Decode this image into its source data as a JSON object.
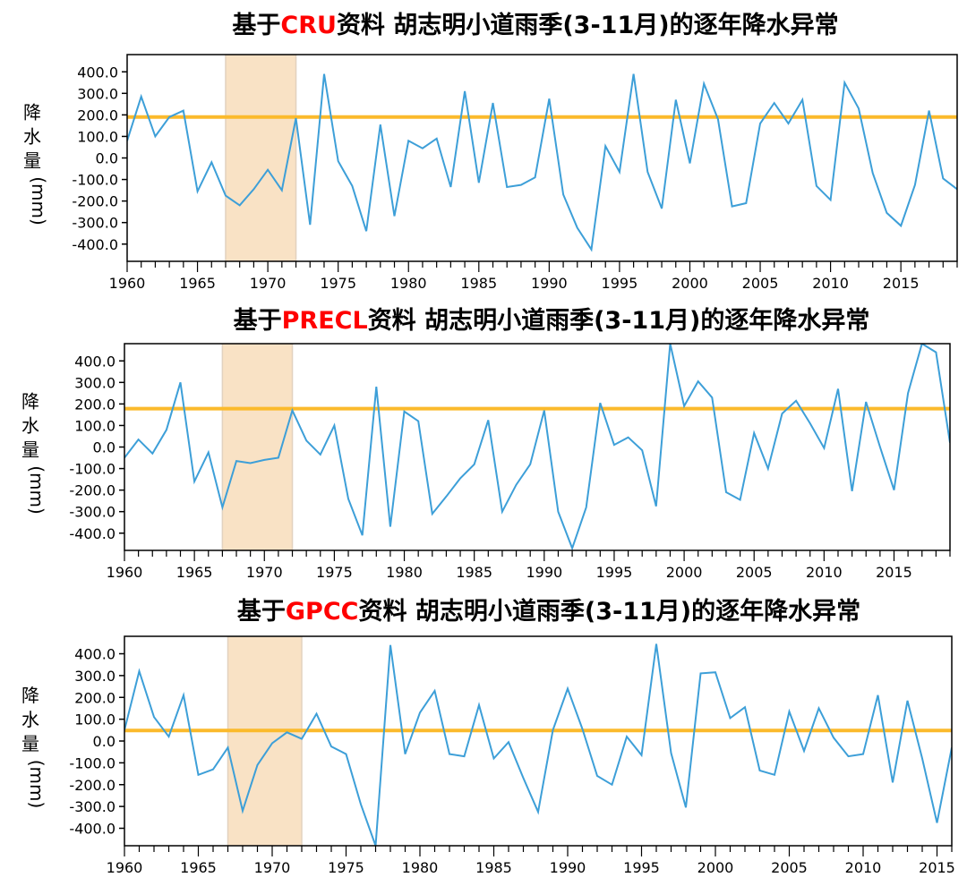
{
  "chart_data": [
    {
      "type": "line",
      "title_prefix": "基于",
      "title_highlight": "CRU",
      "title_suffix": "资料 胡志明小道雨季(3-11月)的逐年降水异常",
      "ylabel_chars": [
        "降",
        "水",
        "量"
      ],
      "ylabel_unit": "(mm)",
      "xlim": [
        1960,
        2019
      ],
      "ylim": [
        -480,
        480
      ],
      "yticks": [
        400,
        300,
        200,
        100,
        0,
        -100,
        -200,
        -300,
        -400
      ],
      "ytick_labels": [
        "400.0",
        "300.0",
        "200.0",
        "100.0",
        "0.0",
        "-100.0",
        "-200.0",
        "-300.0",
        "-400.0"
      ],
      "xticks": [
        1960,
        1965,
        1970,
        1975,
        1980,
        1985,
        1990,
        1995,
        2000,
        2005,
        2010,
        2015
      ],
      "xtick_labels": [
        "1960",
        "1965",
        "1970",
        "1975",
        "1980",
        "1985",
        "1990",
        "1995",
        "2000",
        "2005",
        "2010",
        "2015"
      ],
      "shaded_period": [
        1967,
        1972
      ],
      "reference_line": 190,
      "x": [
        1960,
        1961,
        1962,
        1963,
        1964,
        1965,
        1966,
        1967,
        1968,
        1969,
        1970,
        1971,
        1972,
        1973,
        1974,
        1975,
        1976,
        1977,
        1978,
        1979,
        1980,
        1981,
        1982,
        1983,
        1984,
        1985,
        1986,
        1987,
        1988,
        1989,
        1990,
        1991,
        1992,
        1993,
        1994,
        1995,
        1996,
        1997,
        1998,
        1999,
        2000,
        2001,
        2002,
        2003,
        2004,
        2005,
        2006,
        2007,
        2008,
        2009,
        2010,
        2011,
        2012,
        2013,
        2014,
        2015,
        2016,
        2017,
        2018,
        2019
      ],
      "values": [
        80,
        285,
        100,
        190,
        220,
        -155,
        -20,
        -175,
        -220,
        -145,
        -55,
        -150,
        185,
        -310,
        390,
        -15,
        -130,
        -340,
        155,
        -270,
        80,
        45,
        90,
        -135,
        310,
        -115,
        255,
        -135,
        -125,
        -90,
        275,
        -170,
        -325,
        -425,
        55,
        -65,
        390,
        -65,
        -235,
        270,
        -25,
        345,
        180,
        -225,
        -210,
        160,
        255,
        160,
        270,
        -130,
        -195,
        350,
        230,
        -70,
        -255,
        -315,
        -125,
        220,
        -95,
        -145
      ],
      "colors": {
        "line": "#3d9fd8",
        "reference": "#fbba2c",
        "shade": "#f9e2c5",
        "title_highlight": "#ff0000"
      }
    },
    {
      "type": "line",
      "title_prefix": "基于",
      "title_highlight": "PRECL",
      "title_suffix": "资料 胡志明小道雨季(3-11月)的逐年降水异常",
      "ylabel_chars": [
        "降",
        "水",
        "量"
      ],
      "ylabel_unit": "(mm)",
      "xlim": [
        1960,
        2019
      ],
      "ylim": [
        -480,
        480
      ],
      "yticks": [
        400,
        300,
        200,
        100,
        0,
        -100,
        -200,
        -300,
        -400
      ],
      "ytick_labels": [
        "400.0",
        "300.0",
        "200.0",
        "100.0",
        "0.0",
        "-100.0",
        "-200.0",
        "-300.0",
        "-400.0"
      ],
      "xticks": [
        1960,
        1965,
        1970,
        1975,
        1980,
        1985,
        1990,
        1995,
        2000,
        2005,
        2010,
        2015
      ],
      "xtick_labels": [
        "1960",
        "1965",
        "1970",
        "1975",
        "1980",
        "1985",
        "1990",
        "1995",
        "2000",
        "2005",
        "2010",
        "2015"
      ],
      "shaded_period": [
        1967,
        1972
      ],
      "reference_line": 178,
      "x": [
        1960,
        1961,
        1962,
        1963,
        1964,
        1965,
        1966,
        1967,
        1968,
        1969,
        1970,
        1971,
        1972,
        1973,
        1974,
        1975,
        1976,
        1977,
        1978,
        1979,
        1980,
        1981,
        1982,
        1983,
        1984,
        1985,
        1986,
        1987,
        1988,
        1989,
        1990,
        1991,
        1992,
        1993,
        1994,
        1995,
        1996,
        1997,
        1998,
        1999,
        2000,
        2001,
        2002,
        2003,
        2004,
        2005,
        2006,
        2007,
        2008,
        2009,
        2010,
        2011,
        2012,
        2013,
        2014,
        2015,
        2016,
        2017,
        2018,
        2019
      ],
      "values": [
        -50,
        35,
        -30,
        80,
        300,
        -160,
        -25,
        -280,
        -65,
        -75,
        -60,
        -50,
        170,
        30,
        -35,
        100,
        -240,
        -410,
        280,
        -370,
        165,
        120,
        -310,
        -230,
        -145,
        -80,
        125,
        -300,
        -175,
        -80,
        170,
        -300,
        -470,
        -280,
        205,
        10,
        45,
        -15,
        -275,
        480,
        190,
        305,
        230,
        -210,
        -245,
        65,
        -100,
        155,
        215,
        110,
        -5,
        270,
        -205,
        210,
        0,
        -200,
        250,
        480,
        440,
        20
      ],
      "colors": {
        "line": "#3d9fd8",
        "reference": "#fbba2c",
        "shade": "#f9e2c5",
        "title_highlight": "#ff0000"
      }
    },
    {
      "type": "line",
      "title_prefix": "基于",
      "title_highlight": "GPCC",
      "title_suffix": "资料 胡志明小道雨季(3-11月)的逐年降水异常",
      "ylabel_chars": [
        "降",
        "水",
        "量"
      ],
      "ylabel_unit": "(mm)",
      "xlim": [
        1960,
        2016
      ],
      "ylim": [
        -480,
        480
      ],
      "yticks": [
        400,
        300,
        200,
        100,
        0,
        -100,
        -200,
        -300,
        -400
      ],
      "ytick_labels": [
        "400.0",
        "300.0",
        "200.0",
        "100.0",
        "0.0",
        "-100.0",
        "-200.0",
        "-300.0",
        "-400.0"
      ],
      "xticks": [
        1960,
        1965,
        1970,
        1975,
        1980,
        1985,
        1990,
        1995,
        2000,
        2005,
        2010,
        2015
      ],
      "xtick_labels": [
        "1960",
        "1965",
        "1970",
        "1975",
        "1980",
        "1985",
        "1990",
        "1995",
        "2000",
        "2005",
        "2010",
        "2015"
      ],
      "shaded_period": [
        1967,
        1972
      ],
      "reference_line": 48,
      "x": [
        1960,
        1961,
        1962,
        1963,
        1964,
        1965,
        1966,
        1967,
        1968,
        1969,
        1970,
        1971,
        1972,
        1973,
        1974,
        1975,
        1976,
        1977,
        1978,
        1979,
        1980,
        1981,
        1982,
        1983,
        1984,
        1985,
        1986,
        1987,
        1988,
        1989,
        1990,
        1991,
        1992,
        1993,
        1994,
        1995,
        1996,
        1997,
        1998,
        1999,
        2000,
        2001,
        2002,
        2003,
        2004,
        2005,
        2006,
        2007,
        2008,
        2009,
        2010,
        2011,
        2012,
        2013,
        2014,
        2015,
        2016
      ],
      "values": [
        50,
        320,
        110,
        20,
        210,
        -155,
        -130,
        -30,
        -320,
        -110,
        -10,
        40,
        10,
        125,
        -25,
        -60,
        -290,
        -480,
        440,
        -60,
        130,
        230,
        -60,
        -70,
        165,
        -80,
        -5,
        -170,
        -325,
        50,
        240,
        55,
        -160,
        -200,
        20,
        -65,
        445,
        -55,
        -305,
        310,
        315,
        105,
        155,
        -135,
        -155,
        135,
        -45,
        150,
        15,
        -70,
        -60,
        210,
        -190,
        185,
        -80,
        -375,
        -30
      ],
      "colors": {
        "line": "#3d9fd8",
        "reference": "#fbba2c",
        "shade": "#f9e2c5",
        "title_highlight": "#ff0000"
      }
    }
  ]
}
